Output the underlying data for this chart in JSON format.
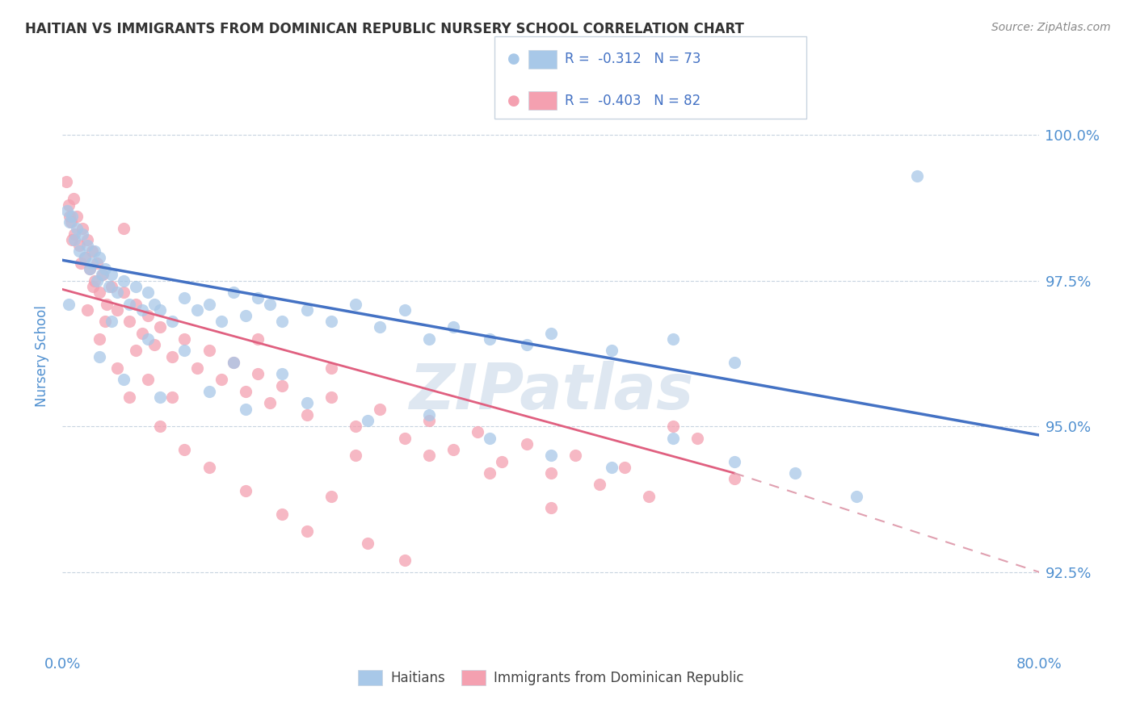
{
  "title": "HAITIAN VS IMMIGRANTS FROM DOMINICAN REPUBLIC NURSERY SCHOOL CORRELATION CHART",
  "source": "Source: ZipAtlas.com",
  "ylabel": "Nursery School",
  "xmin": 0.0,
  "xmax": 80.0,
  "ymin": 91.2,
  "ymax": 101.2,
  "yticks": [
    92.5,
    95.0,
    97.5,
    100.0
  ],
  "ytick_labels": [
    "92.5%",
    "95.0%",
    "97.5%",
    "100.0%"
  ],
  "blue_line": [
    0.0,
    97.85,
    80.0,
    94.85
  ],
  "pink_solid_line": [
    0.0,
    97.35,
    55.0,
    94.2
  ],
  "pink_dashed_line": [
    55.0,
    94.2,
    80.0,
    92.5
  ],
  "blue_scatter": [
    [
      0.4,
      98.7
    ],
    [
      0.6,
      98.5
    ],
    [
      0.8,
      98.6
    ],
    [
      1.0,
      98.2
    ],
    [
      1.2,
      98.4
    ],
    [
      1.4,
      98.0
    ],
    [
      1.6,
      98.3
    ],
    [
      1.8,
      97.9
    ],
    [
      2.0,
      98.1
    ],
    [
      2.2,
      97.7
    ],
    [
      2.4,
      97.8
    ],
    [
      2.6,
      98.0
    ],
    [
      2.8,
      97.5
    ],
    [
      3.0,
      97.9
    ],
    [
      3.2,
      97.6
    ],
    [
      3.5,
      97.7
    ],
    [
      3.8,
      97.4
    ],
    [
      4.0,
      97.6
    ],
    [
      4.5,
      97.3
    ],
    [
      5.0,
      97.5
    ],
    [
      5.5,
      97.1
    ],
    [
      6.0,
      97.4
    ],
    [
      6.5,
      97.0
    ],
    [
      7.0,
      97.3
    ],
    [
      7.5,
      97.1
    ],
    [
      8.0,
      97.0
    ],
    [
      9.0,
      96.8
    ],
    [
      10.0,
      97.2
    ],
    [
      11.0,
      97.0
    ],
    [
      12.0,
      97.1
    ],
    [
      13.0,
      96.8
    ],
    [
      14.0,
      97.3
    ],
    [
      15.0,
      96.9
    ],
    [
      16.0,
      97.2
    ],
    [
      17.0,
      97.1
    ],
    [
      18.0,
      96.8
    ],
    [
      20.0,
      97.0
    ],
    [
      22.0,
      96.8
    ],
    [
      24.0,
      97.1
    ],
    [
      26.0,
      96.7
    ],
    [
      28.0,
      97.0
    ],
    [
      30.0,
      96.5
    ],
    [
      32.0,
      96.7
    ],
    [
      35.0,
      96.5
    ],
    [
      38.0,
      96.4
    ],
    [
      40.0,
      96.6
    ],
    [
      45.0,
      96.3
    ],
    [
      50.0,
      96.5
    ],
    [
      55.0,
      96.1
    ],
    [
      3.0,
      96.2
    ],
    [
      5.0,
      95.8
    ],
    [
      8.0,
      95.5
    ],
    [
      12.0,
      95.6
    ],
    [
      15.0,
      95.3
    ],
    [
      20.0,
      95.4
    ],
    [
      25.0,
      95.1
    ],
    [
      30.0,
      95.2
    ],
    [
      35.0,
      94.8
    ],
    [
      40.0,
      94.5
    ],
    [
      45.0,
      94.3
    ],
    [
      50.0,
      94.8
    ],
    [
      55.0,
      94.4
    ],
    [
      4.0,
      96.8
    ],
    [
      7.0,
      96.5
    ],
    [
      10.0,
      96.3
    ],
    [
      14.0,
      96.1
    ],
    [
      18.0,
      95.9
    ],
    [
      60.0,
      94.2
    ],
    [
      65.0,
      93.8
    ],
    [
      70.0,
      99.3
    ],
    [
      0.5,
      97.1
    ]
  ],
  "pink_scatter": [
    [
      0.3,
      99.2
    ],
    [
      0.5,
      98.8
    ],
    [
      0.7,
      98.5
    ],
    [
      0.9,
      98.9
    ],
    [
      1.0,
      98.3
    ],
    [
      1.2,
      98.6
    ],
    [
      1.4,
      98.1
    ],
    [
      1.6,
      98.4
    ],
    [
      1.8,
      97.9
    ],
    [
      2.0,
      98.2
    ],
    [
      2.2,
      97.7
    ],
    [
      2.4,
      98.0
    ],
    [
      2.6,
      97.5
    ],
    [
      2.8,
      97.8
    ],
    [
      3.0,
      97.3
    ],
    [
      3.3,
      97.6
    ],
    [
      3.6,
      97.1
    ],
    [
      4.0,
      97.4
    ],
    [
      4.5,
      97.0
    ],
    [
      5.0,
      97.3
    ],
    [
      5.5,
      96.8
    ],
    [
      6.0,
      97.1
    ],
    [
      6.5,
      96.6
    ],
    [
      7.0,
      96.9
    ],
    [
      7.5,
      96.4
    ],
    [
      8.0,
      96.7
    ],
    [
      9.0,
      96.2
    ],
    [
      10.0,
      96.5
    ],
    [
      11.0,
      96.0
    ],
    [
      12.0,
      96.3
    ],
    [
      13.0,
      95.8
    ],
    [
      14.0,
      96.1
    ],
    [
      15.0,
      95.6
    ],
    [
      16.0,
      95.9
    ],
    [
      17.0,
      95.4
    ],
    [
      18.0,
      95.7
    ],
    [
      20.0,
      95.2
    ],
    [
      22.0,
      95.5
    ],
    [
      24.0,
      95.0
    ],
    [
      26.0,
      95.3
    ],
    [
      28.0,
      94.8
    ],
    [
      30.0,
      95.1
    ],
    [
      32.0,
      94.6
    ],
    [
      34.0,
      94.9
    ],
    [
      36.0,
      94.4
    ],
    [
      38.0,
      94.7
    ],
    [
      40.0,
      94.2
    ],
    [
      42.0,
      94.5
    ],
    [
      44.0,
      94.0
    ],
    [
      46.0,
      94.3
    ],
    [
      48.0,
      93.8
    ],
    [
      50.0,
      95.0
    ],
    [
      52.0,
      94.8
    ],
    [
      2.0,
      97.0
    ],
    [
      3.0,
      96.5
    ],
    [
      4.5,
      96.0
    ],
    [
      5.5,
      95.5
    ],
    [
      7.0,
      95.8
    ],
    [
      8.0,
      95.0
    ],
    [
      10.0,
      94.6
    ],
    [
      12.0,
      94.3
    ],
    [
      15.0,
      93.9
    ],
    [
      18.0,
      93.5
    ],
    [
      20.0,
      93.2
    ],
    [
      22.0,
      93.8
    ],
    [
      25.0,
      93.0
    ],
    [
      28.0,
      92.7
    ],
    [
      1.5,
      97.8
    ],
    [
      2.5,
      97.4
    ],
    [
      5.0,
      98.4
    ],
    [
      0.8,
      98.2
    ],
    [
      3.5,
      96.8
    ],
    [
      6.0,
      96.3
    ],
    [
      9.0,
      95.5
    ],
    [
      55.0,
      94.1
    ],
    [
      30.0,
      94.5
    ],
    [
      35.0,
      94.2
    ],
    [
      40.0,
      93.6
    ],
    [
      0.6,
      98.6
    ],
    [
      16.0,
      96.5
    ],
    [
      22.0,
      96.0
    ],
    [
      24.0,
      94.5
    ]
  ],
  "blue_line_color": "#4472c4",
  "pink_solid_color": "#e06080",
  "pink_dashed_color": "#e0a0b0",
  "blue_scatter_color": "#a8c8e8",
  "pink_scatter_color": "#f4a0b0",
  "grid_color": "#c8d4e0",
  "watermark_color": "#c8d8e8",
  "title_color": "#333333",
  "axis_label_color": "#5090d0",
  "source_color": "#888888"
}
